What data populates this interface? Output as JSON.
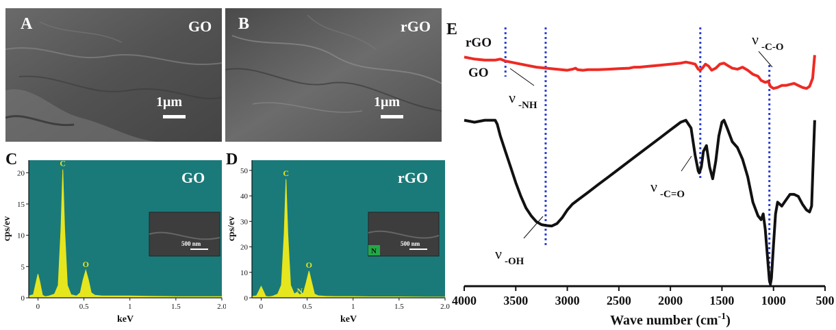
{
  "panels": {
    "A": {
      "label": "A",
      "sample": "GO",
      "scale": "1μm"
    },
    "B": {
      "label": "B",
      "sample": "rGO",
      "scale": "1μm"
    },
    "C": {
      "label": "C",
      "sample": "GO",
      "inset_scale": "500 nm"
    },
    "D": {
      "label": "D",
      "sample": "rGO",
      "inset_scale": "500 nm",
      "inset_element": "N"
    },
    "E": {
      "label": "E"
    }
  },
  "colors": {
    "edx_bg": "#1a7a7a",
    "edx_peak": "#e6e61e",
    "ftir_rgo": "#ee2a24",
    "ftir_go": "#111111",
    "guide": "#2b3fd6"
  },
  "chart_data": [
    {
      "type": "area",
      "panel": "C",
      "xlabel": "keV",
      "ylabel": "cps/ev",
      "xlim": [
        -0.1,
        2.0
      ],
      "ylim": [
        0,
        22
      ],
      "xticks": [
        "0",
        "0.5",
        "1",
        "1.5",
        "2.0"
      ],
      "yticks": [
        "0",
        "5",
        "10",
        "15",
        "20"
      ],
      "sample": "GO",
      "x": [
        -0.1,
        -0.05,
        -0.02,
        0.0,
        0.02,
        0.05,
        0.08,
        0.12,
        0.18,
        0.22,
        0.25,
        0.27,
        0.29,
        0.32,
        0.36,
        0.42,
        0.46,
        0.49,
        0.52,
        0.55,
        0.58,
        0.62,
        0.7,
        0.8,
        1.0,
        1.2,
        1.5,
        1.8,
        2.0
      ],
      "y": [
        0.3,
        0.5,
        2.5,
        3.8,
        2.6,
        0.4,
        0.2,
        0.3,
        0.6,
        2.0,
        11.0,
        20.5,
        11.0,
        2.0,
        0.5,
        0.3,
        0.8,
        2.8,
        4.4,
        2.8,
        0.8,
        0.4,
        0.3,
        0.3,
        0.3,
        0.25,
        0.2,
        0.2,
        0.2
      ],
      "peaks": [
        {
          "name": "C",
          "x": 0.27,
          "y": 20.5
        },
        {
          "name": "O",
          "x": 0.52,
          "y": 4.4
        }
      ]
    },
    {
      "type": "area",
      "panel": "D",
      "xlabel": "keV",
      "ylabel": "cps/ev",
      "xlim": [
        -0.1,
        2.0
      ],
      "ylim": [
        0,
        54
      ],
      "xticks": [
        "0",
        "0.5",
        "1",
        "1.5",
        "2.0"
      ],
      "yticks": [
        "0",
        "10",
        "20",
        "30",
        "40",
        "50"
      ],
      "sample": "rGO",
      "x": [
        -0.1,
        -0.05,
        -0.02,
        0.0,
        0.02,
        0.05,
        0.08,
        0.12,
        0.18,
        0.22,
        0.25,
        0.27,
        0.29,
        0.32,
        0.36,
        0.39,
        0.42,
        0.46,
        0.49,
        0.52,
        0.55,
        0.58,
        0.62,
        0.7,
        0.8,
        1.0,
        1.2,
        1.5,
        1.8,
        2.0
      ],
      "y": [
        0.5,
        0.8,
        3.0,
        4.5,
        3.0,
        0.6,
        0.4,
        0.6,
        1.5,
        5.0,
        25.0,
        46.5,
        25.0,
        5.0,
        1.5,
        2.2,
        1.2,
        2.0,
        6.0,
        10.5,
        6.0,
        1.5,
        0.8,
        0.6,
        0.5,
        0.5,
        0.4,
        0.4,
        0.3,
        0.3
      ],
      "peaks": [
        {
          "name": "C",
          "x": 0.27,
          "y": 46.5
        },
        {
          "name": "N",
          "x": 0.39,
          "y": 2.2
        },
        {
          "name": "O",
          "x": 0.52,
          "y": 10.5
        }
      ]
    },
    {
      "type": "line",
      "panel": "E",
      "xlabel": "Wave number (cm⁻¹)",
      "ylabel": "",
      "xlim": [
        4000,
        500
      ],
      "ylim": [
        0,
        100
      ],
      "xticks": [
        "4000",
        "3500",
        "3000",
        "2500",
        "2000",
        "1500",
        "1000",
        "500"
      ],
      "series": [
        {
          "name": "rGO",
          "color": "#ee2a24",
          "x": [
            4000,
            3900,
            3800,
            3700,
            3650,
            3600,
            3500,
            3400,
            3300,
            3200,
            3100,
            3000,
            2950,
            2920,
            2900,
            2850,
            2800,
            2700,
            2600,
            2500,
            2400,
            2350,
            2300,
            2200,
            2100,
            2000,
            1900,
            1850,
            1800,
            1760,
            1730,
            1710,
            1690,
            1660,
            1630,
            1600,
            1560,
            1520,
            1480,
            1450,
            1400,
            1350,
            1300,
            1250,
            1200,
            1150,
            1120,
            1080,
            1050,
            1030,
            1000,
            960,
            920,
            880,
            840,
            800,
            760,
            720,
            680,
            650,
            620,
            600
          ],
          "y": [
            91,
            89,
            88,
            88,
            89,
            87,
            85,
            83,
            81,
            80,
            79,
            78,
            79,
            80,
            78.5,
            78,
            78.5,
            78.5,
            79,
            79.5,
            80,
            81,
            81,
            82,
            83,
            84,
            85,
            86,
            85,
            84,
            79,
            78,
            80,
            84,
            82,
            78,
            80,
            84,
            85,
            83,
            80,
            79,
            81,
            78,
            74,
            72,
            68,
            66,
            67,
            62,
            60,
            61,
            63,
            63,
            64,
            65,
            63,
            61,
            60,
            62,
            70,
            93
          ]
        },
        {
          "name": "GO",
          "color": "#111111",
          "x": [
            4000,
            3900,
            3800,
            3700,
            3680,
            3650,
            3600,
            3550,
            3500,
            3450,
            3400,
            3350,
            3300,
            3250,
            3200,
            3150,
            3100,
            3050,
            3000,
            2950,
            2900,
            2800,
            2700,
            2600,
            2500,
            2400,
            2300,
            2200,
            2100,
            2000,
            1950,
            1900,
            1850,
            1800,
            1760,
            1730,
            1720,
            1700,
            1680,
            1650,
            1620,
            1590,
            1560,
            1530,
            1500,
            1480,
            1450,
            1400,
            1350,
            1300,
            1250,
            1200,
            1150,
            1120,
            1100,
            1080,
            1060,
            1040,
            1030,
            1020,
            1000,
            980,
            960,
            920,
            880,
            840,
            800,
            760,
            720,
            680,
            650,
            630,
            610,
            600
          ],
          "y": [
            84,
            83,
            84,
            84,
            82,
            76,
            68,
            60,
            52,
            45,
            39,
            35,
            32,
            30.5,
            30,
            29.8,
            31,
            34,
            38,
            41,
            43,
            47,
            51,
            55,
            59,
            63,
            67,
            71,
            75,
            79,
            81,
            83,
            84,
            80,
            66,
            58,
            57,
            60,
            68,
            71,
            60,
            54,
            63,
            76,
            83,
            84,
            80,
            73,
            70,
            64,
            55,
            42,
            35,
            33,
            36,
            28,
            15,
            2,
            0,
            3,
            20,
            36,
            42,
            40,
            43,
            46,
            46,
            45,
            41,
            38,
            37,
            40,
            70,
            84
          ]
        }
      ],
      "guides": [
        3600,
        3210,
        1710,
        1040
      ],
      "annotations": [
        {
          "text": "ν",
          "sub": "-NH",
          "target_x": 3600
        },
        {
          "text": "ν",
          "sub": "-OH",
          "target_x": 3200
        },
        {
          "text": "ν",
          "sub": "-C=O",
          "target_x": 1720
        },
        {
          "text": "ν",
          "sub": "-C-O",
          "target_x": 1040
        }
      ]
    }
  ]
}
